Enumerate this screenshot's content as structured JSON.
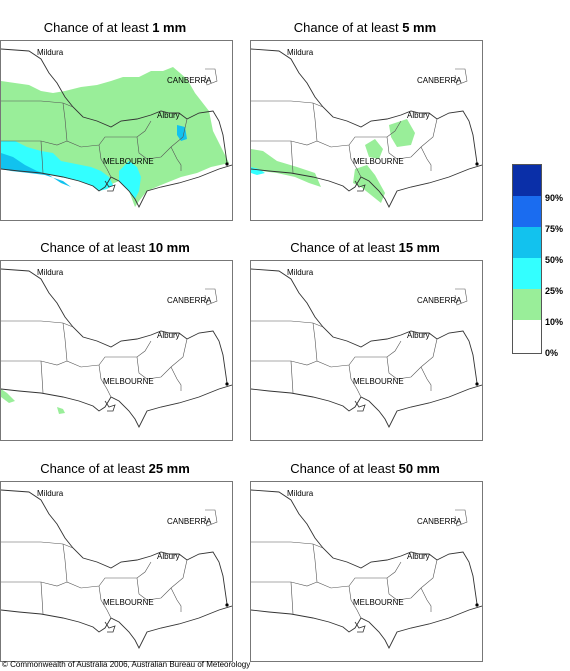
{
  "title_prefix": "Chance of at least",
  "panels": [
    {
      "amount": "1 mm"
    },
    {
      "amount": "5 mm"
    },
    {
      "amount": "10 mm"
    },
    {
      "amount": "15 mm"
    },
    {
      "amount": "25 mm"
    },
    {
      "amount": "50 mm"
    }
  ],
  "places": {
    "mildura": "Mildura",
    "canberra": "CANBERRA",
    "albury": "Albury",
    "melbourne": "MELBOURNE"
  },
  "legend": {
    "labels": [
      "90%",
      "75%",
      "50%",
      "25%",
      "10%",
      "0%"
    ],
    "colors": [
      "#0a2fa8",
      "#1a6cf0",
      "#12c2ee",
      "#33ffff",
      "#99ee99",
      "#ffffff"
    ]
  },
  "copyright": "© Commonwealth of Australia 2006, Australian Bureau of Meteorology"
}
